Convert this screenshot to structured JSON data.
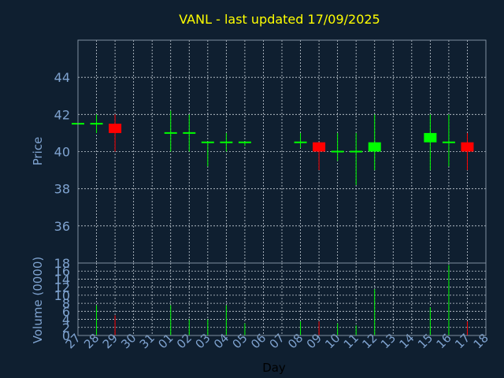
{
  "chart_data": {
    "type": "candlestick",
    "title": "VANL - last updated 17/09/2025",
    "xlabel": "Day",
    "price_panel": {
      "ylabel": "Price",
      "ylim": [
        34,
        46
      ],
      "yticks": [
        36,
        38,
        40,
        42,
        44
      ],
      "grid": true
    },
    "volume_panel": {
      "ylabel": "Volume (0000)",
      "ylim": [
        0,
        18
      ],
      "yticks": [
        0,
        2,
        4,
        6,
        8,
        10,
        12,
        14,
        16,
        18
      ],
      "grid": true
    },
    "x_ticks": [
      "27",
      "28",
      "29",
      "30",
      "31",
      "01",
      "02",
      "03",
      "04",
      "05",
      "06",
      "07",
      "08",
      "09",
      "10",
      "11",
      "12",
      "13",
      "14",
      "15",
      "16",
      "17",
      "18"
    ],
    "candles": [
      {
        "x": "27",
        "open": 41.5,
        "high": 41.5,
        "low": 41.5,
        "close": 41.5,
        "volume": 0.0
      },
      {
        "x": "28",
        "open": 41.5,
        "high": 42.0,
        "low": 41.0,
        "close": 41.5,
        "volume": 7.5
      },
      {
        "x": "29",
        "open": 41.5,
        "high": 42.0,
        "low": 40.0,
        "close": 41.0,
        "volume": 5.0
      },
      {
        "x": "01",
        "open": 41.0,
        "high": 42.2,
        "low": 40.0,
        "close": 41.0,
        "volume": 7.5
      },
      {
        "x": "02",
        "open": 41.0,
        "high": 42.0,
        "low": 40.0,
        "close": 41.0,
        "volume": 4.0
      },
      {
        "x": "03",
        "open": 40.5,
        "high": 40.5,
        "low": 39.2,
        "close": 40.5,
        "volume": 4.0
      },
      {
        "x": "04",
        "open": 40.5,
        "high": 41.0,
        "low": 40.0,
        "close": 40.5,
        "volume": 7.5
      },
      {
        "x": "05",
        "open": 40.5,
        "high": 40.5,
        "low": 40.3,
        "close": 40.5,
        "volume": 3.0
      },
      {
        "x": "08",
        "open": 40.5,
        "high": 41.0,
        "low": 40.2,
        "close": 40.5,
        "volume": 3.5
      },
      {
        "x": "09",
        "open": 40.5,
        "high": 40.5,
        "low": 39.0,
        "close": 40.0,
        "volume": 3.5
      },
      {
        "x": "10",
        "open": 40.0,
        "high": 41.0,
        "low": 39.5,
        "close": 40.0,
        "volume": 3.0
      },
      {
        "x": "11",
        "open": 40.0,
        "high": 41.0,
        "low": 38.2,
        "close": 40.0,
        "volume": 2.5
      },
      {
        "x": "12",
        "open": 40.0,
        "high": 42.0,
        "low": 39.0,
        "close": 40.5,
        "volume": 11.5
      },
      {
        "x": "15",
        "open": 40.5,
        "high": 42.0,
        "low": 39.0,
        "close": 41.0,
        "volume": 7.0
      },
      {
        "x": "16",
        "open": 40.5,
        "high": 42.0,
        "low": 39.2,
        "close": 40.5,
        "volume": 17.5
      },
      {
        "x": "17",
        "open": 40.5,
        "high": 41.0,
        "low": 39.0,
        "close": 40.0,
        "volume": 3.5
      }
    ]
  }
}
